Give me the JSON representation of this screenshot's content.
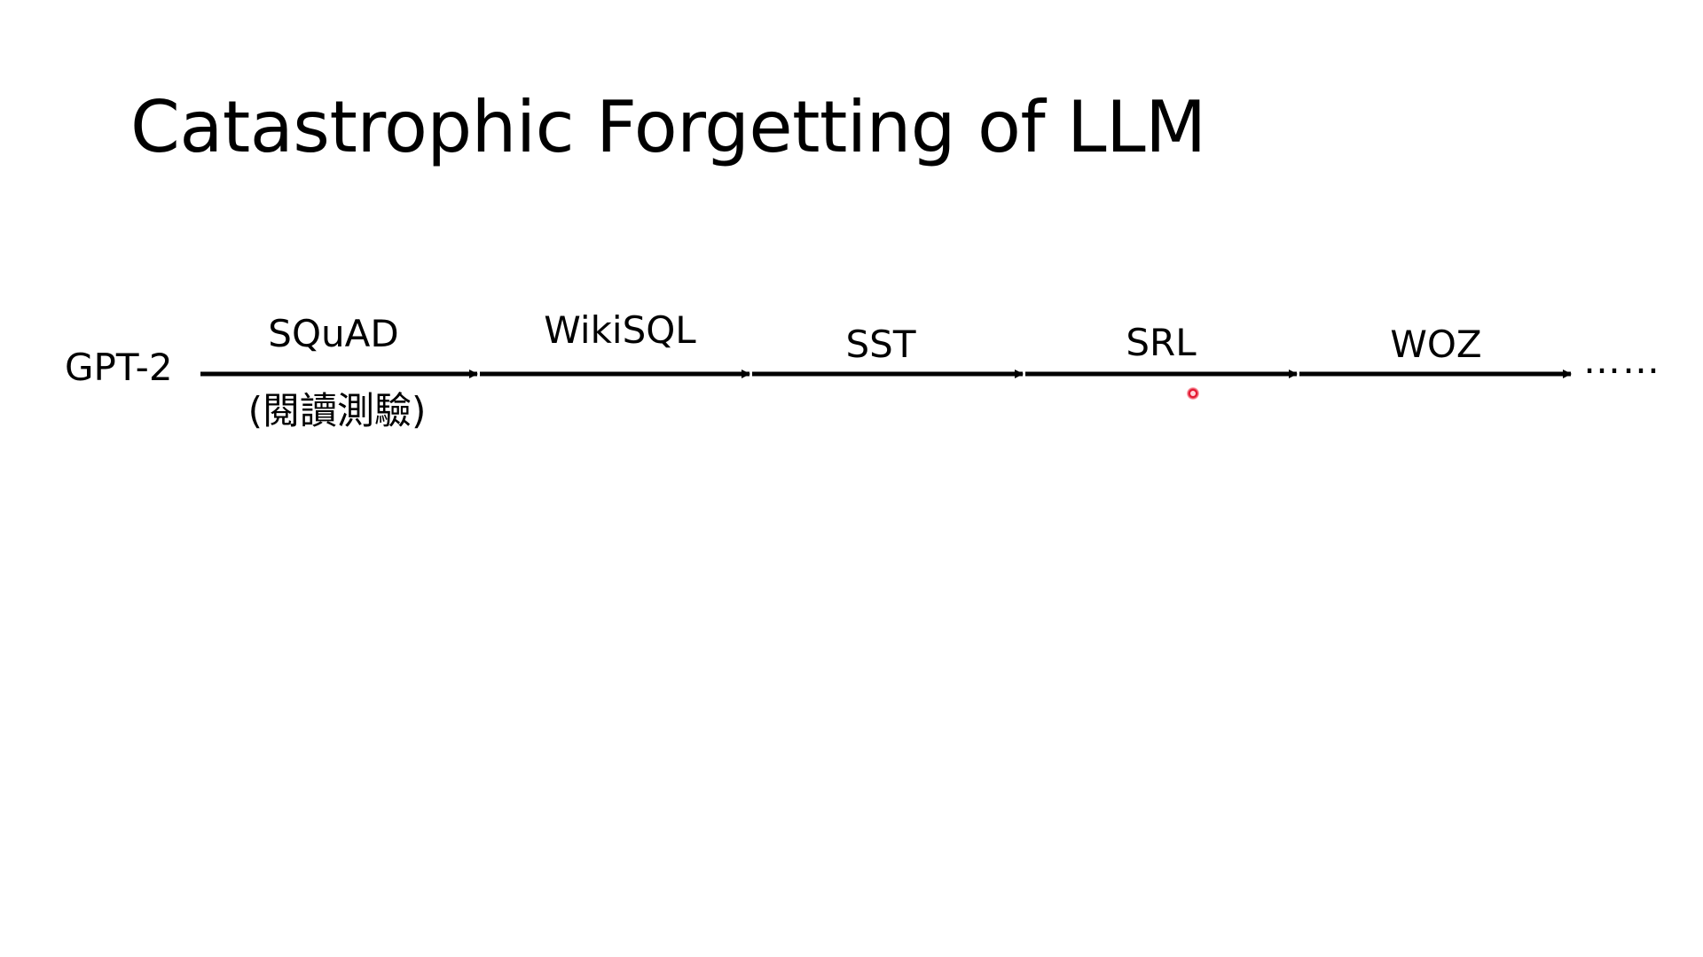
{
  "slide": {
    "title": "Catastrophic Forgetting of LLM"
  },
  "diagram": {
    "start": "GPT-2",
    "steps": [
      {
        "label": "SQuAD",
        "sublabel": "(閱讀測驗)"
      },
      {
        "label": "WikiSQL"
      },
      {
        "label": "SST"
      },
      {
        "label": "SRL"
      },
      {
        "label": "WOZ"
      }
    ],
    "continuation": "……"
  },
  "colors": {
    "arrow": "#000000",
    "pointer": "#e0102a"
  }
}
